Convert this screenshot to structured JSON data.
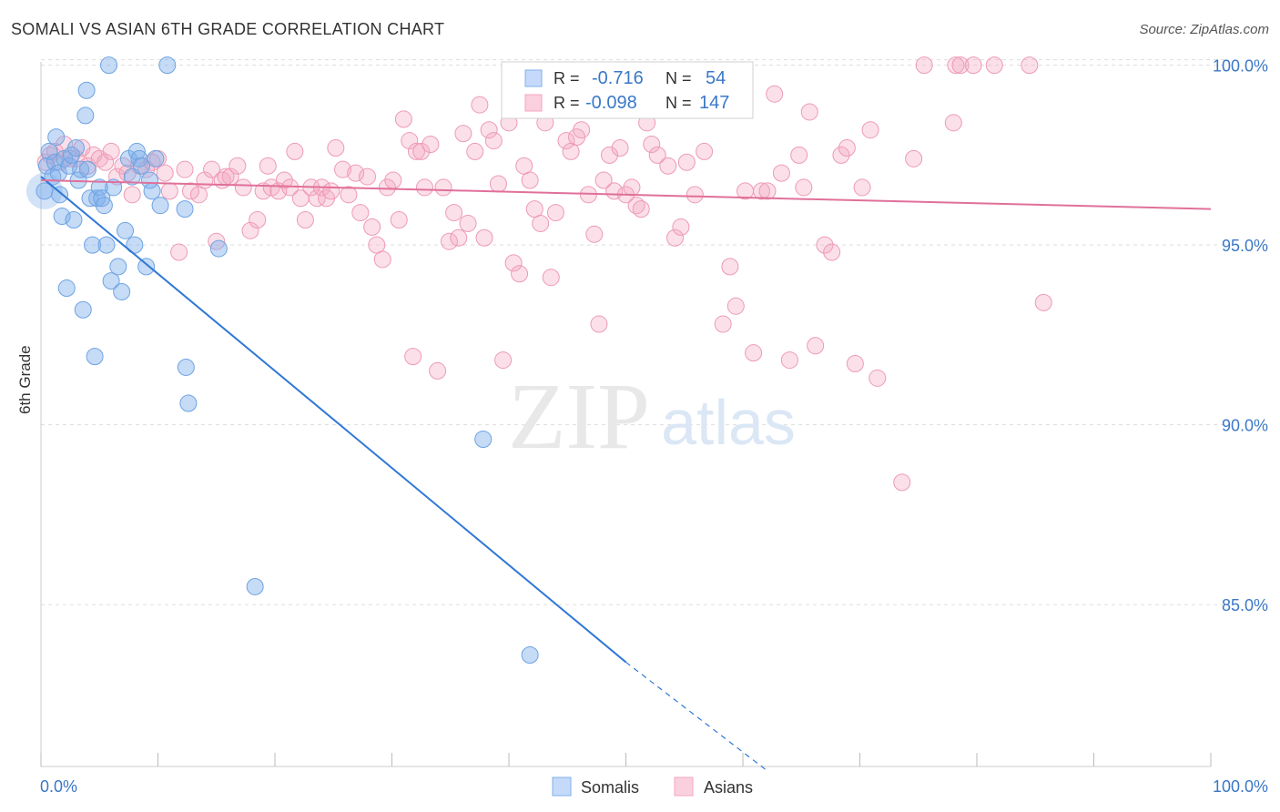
{
  "header": {
    "title": "SOMALI VS ASIAN 6TH GRADE CORRELATION CHART",
    "source": "Source: ZipAtlas.com"
  },
  "watermark": {
    "zip": "ZIP",
    "atlas": "atlas"
  },
  "colors": {
    "somali": "#7fb0ea",
    "somali_line": "#2f78d6",
    "asian": "#f4a6bf",
    "asian_line": "#e0709a",
    "axis_label": "#3a78c8",
    "grid": "#dddddd"
  },
  "legend": {
    "rows": [
      {
        "r_label": "R =",
        "r_value": "-0.716",
        "n_label": "N =",
        "n_value": "54"
      },
      {
        "r_label": "R =",
        "r_value": "-0.098",
        "n_label": "N =",
        "n_value": "147"
      }
    ],
    "bottom": [
      "Somalis",
      "Asians"
    ]
  },
  "chart_data": {
    "type": "scatter",
    "title": "SOMALI VS ASIAN 6TH GRADE CORRELATION CHART",
    "xlabel": "",
    "ylabel": "6th Grade",
    "xlim": [
      0,
      100
    ],
    "ylim": [
      80.5,
      100.8
    ],
    "x_tick_labels": [
      "0.0%",
      "100.0%"
    ],
    "y_ticks": [
      85,
      90,
      95,
      100
    ],
    "y_tick_labels": [
      "85.0%",
      "90.0%",
      "95.0%",
      "100.0%"
    ],
    "grid": true,
    "legend_position": "top-center",
    "series": [
      {
        "name": "Somalis",
        "r": -0.716,
        "n": 54,
        "trend": {
          "x0": 0,
          "y0": 96.9,
          "x1": 50,
          "y1": 83.4,
          "dashed_to": [
            62,
            80.4
          ]
        },
        "points": [
          [
            0.3,
            96.5
          ],
          [
            0.5,
            97.2
          ],
          [
            0.7,
            97.6
          ],
          [
            1.0,
            96.9
          ],
          [
            1.2,
            97.3
          ],
          [
            1.3,
            98.0
          ],
          [
            1.5,
            97.0
          ],
          [
            1.6,
            96.4
          ],
          [
            1.8,
            95.8
          ],
          [
            2.0,
            97.4
          ],
          [
            2.2,
            93.8
          ],
          [
            2.4,
            97.2
          ],
          [
            2.6,
            97.5
          ],
          [
            2.8,
            95.7
          ],
          [
            3.0,
            97.7
          ],
          [
            3.2,
            96.8
          ],
          [
            3.4,
            97.1
          ],
          [
            3.6,
            93.2
          ],
          [
            3.8,
            98.6
          ],
          [
            3.9,
            99.3
          ],
          [
            4.0,
            97.1
          ],
          [
            4.2,
            96.3
          ],
          [
            4.4,
            95.0
          ],
          [
            4.6,
            91.9
          ],
          [
            4.8,
            96.3
          ],
          [
            5.0,
            96.6
          ],
          [
            5.2,
            96.3
          ],
          [
            5.4,
            96.1
          ],
          [
            5.6,
            95.0
          ],
          [
            5.8,
            100.0
          ],
          [
            6.0,
            94.0
          ],
          [
            6.2,
            96.6
          ],
          [
            6.6,
            94.4
          ],
          [
            6.9,
            93.7
          ],
          [
            7.2,
            95.4
          ],
          [
            7.5,
            97.4
          ],
          [
            7.8,
            96.9
          ],
          [
            8.0,
            95.0
          ],
          [
            8.2,
            97.6
          ],
          [
            8.4,
            97.4
          ],
          [
            8.6,
            97.2
          ],
          [
            9.0,
            94.4
          ],
          [
            9.3,
            96.8
          ],
          [
            9.5,
            96.5
          ],
          [
            9.8,
            97.4
          ],
          [
            10.2,
            96.1
          ],
          [
            10.8,
            100.0
          ],
          [
            12.3,
            96.0
          ],
          [
            12.4,
            91.6
          ],
          [
            12.6,
            90.6
          ],
          [
            15.2,
            94.9
          ],
          [
            18.3,
            85.5
          ],
          [
            37.8,
            89.6
          ],
          [
            41.8,
            83.6
          ]
        ]
      },
      {
        "name": "Asians",
        "r": -0.098,
        "n": 147,
        "trend": {
          "x0": 0,
          "y0": 96.8,
          "x1": 100,
          "y1": 96.0
        },
        "points": [
          [
            0.4,
            97.3
          ],
          [
            0.8,
            97.5
          ],
          [
            1.2,
            97.6
          ],
          [
            1.6,
            97.3
          ],
          [
            2.0,
            97.8
          ],
          [
            2.5,
            97.4
          ],
          [
            3.0,
            97.4
          ],
          [
            3.5,
            97.7
          ],
          [
            4.0,
            97.2
          ],
          [
            4.5,
            97.5
          ],
          [
            5.0,
            97.4
          ],
          [
            5.5,
            97.3
          ],
          [
            6.0,
            97.6
          ],
          [
            6.5,
            96.9
          ],
          [
            7.0,
            97.2
          ],
          [
            7.4,
            97.0
          ],
          [
            7.8,
            96.4
          ],
          [
            8.4,
            97.2
          ],
          [
            9.0,
            97.1
          ],
          [
            9.5,
            97.3
          ],
          [
            10.0,
            97.4
          ],
          [
            10.6,
            97.0
          ],
          [
            11.0,
            96.5
          ],
          [
            11.8,
            94.8
          ],
          [
            12.3,
            97.1
          ],
          [
            12.8,
            96.5
          ],
          [
            13.5,
            96.4
          ],
          [
            14.0,
            96.8
          ],
          [
            14.6,
            97.1
          ],
          [
            15.0,
            95.1
          ],
          [
            15.5,
            96.8
          ],
          [
            15.8,
            96.9
          ],
          [
            16.2,
            96.9
          ],
          [
            16.8,
            97.2
          ],
          [
            17.3,
            96.6
          ],
          [
            17.9,
            95.4
          ],
          [
            18.5,
            95.7
          ],
          [
            19.0,
            96.5
          ],
          [
            19.4,
            97.2
          ],
          [
            19.7,
            96.6
          ],
          [
            20.3,
            96.5
          ],
          [
            20.8,
            96.8
          ],
          [
            21.3,
            96.6
          ],
          [
            21.7,
            97.6
          ],
          [
            22.2,
            96.3
          ],
          [
            22.6,
            95.7
          ],
          [
            23.1,
            96.6
          ],
          [
            23.6,
            96.3
          ],
          [
            24.0,
            96.6
          ],
          [
            24.4,
            96.3
          ],
          [
            24.8,
            96.5
          ],
          [
            25.2,
            97.7
          ],
          [
            25.8,
            97.1
          ],
          [
            26.3,
            96.4
          ],
          [
            26.9,
            97.0
          ],
          [
            27.3,
            95.9
          ],
          [
            27.9,
            96.9
          ],
          [
            28.3,
            95.5
          ],
          [
            28.7,
            95.0
          ],
          [
            29.2,
            94.6
          ],
          [
            29.6,
            96.6
          ],
          [
            30.1,
            96.8
          ],
          [
            30.6,
            95.7
          ],
          [
            31.0,
            98.5
          ],
          [
            31.5,
            97.9
          ],
          [
            31.8,
            91.9
          ],
          [
            32.1,
            97.6
          ],
          [
            32.5,
            97.6
          ],
          [
            32.8,
            96.6
          ],
          [
            33.3,
            97.8
          ],
          [
            33.9,
            91.5
          ],
          [
            34.4,
            96.6
          ],
          [
            34.9,
            95.1
          ],
          [
            35.3,
            95.9
          ],
          [
            35.7,
            95.2
          ],
          [
            36.1,
            98.1
          ],
          [
            36.5,
            95.6
          ],
          [
            37.1,
            97.6
          ],
          [
            37.5,
            98.9
          ],
          [
            37.9,
            95.2
          ],
          [
            38.3,
            98.2
          ],
          [
            38.7,
            97.9
          ],
          [
            39.1,
            96.7
          ],
          [
            39.5,
            91.8
          ],
          [
            40.0,
            98.4
          ],
          [
            40.4,
            94.5
          ],
          [
            40.9,
            94.2
          ],
          [
            41.3,
            97.2
          ],
          [
            41.8,
            96.8
          ],
          [
            42.2,
            96.0
          ],
          [
            42.7,
            95.6
          ],
          [
            43.1,
            98.4
          ],
          [
            43.6,
            94.1
          ],
          [
            44.0,
            95.9
          ],
          [
            44.4,
            98.9
          ],
          [
            44.9,
            97.9
          ],
          [
            45.3,
            97.6
          ],
          [
            45.8,
            98.0
          ],
          [
            46.2,
            98.2
          ],
          [
            46.8,
            96.4
          ],
          [
            47.3,
            95.3
          ],
          [
            47.7,
            92.8
          ],
          [
            48.1,
            96.8
          ],
          [
            48.6,
            97.5
          ],
          [
            49.0,
            96.5
          ],
          [
            49.5,
            97.7
          ],
          [
            50.0,
            96.4
          ],
          [
            50.5,
            96.6
          ],
          [
            50.9,
            96.1
          ],
          [
            51.3,
            96.0
          ],
          [
            51.8,
            98.4
          ],
          [
            52.2,
            97.8
          ],
          [
            52.7,
            97.5
          ],
          [
            53.1,
            98.9
          ],
          [
            53.6,
            97.2
          ],
          [
            54.2,
            95.2
          ],
          [
            54.7,
            95.5
          ],
          [
            55.2,
            97.3
          ],
          [
            55.9,
            96.4
          ],
          [
            56.7,
            97.6
          ],
          [
            57.4,
            98.8
          ],
          [
            58.3,
            92.8
          ],
          [
            58.9,
            94.4
          ],
          [
            59.4,
            93.3
          ],
          [
            60.2,
            96.5
          ],
          [
            60.9,
            92.0
          ],
          [
            61.6,
            96.5
          ],
          [
            62.1,
            96.5
          ],
          [
            62.7,
            99.2
          ],
          [
            63.3,
            97.0
          ],
          [
            64.0,
            91.8
          ],
          [
            64.8,
            97.5
          ],
          [
            65.2,
            96.6
          ],
          [
            65.7,
            98.7
          ],
          [
            66.2,
            92.2
          ],
          [
            67.0,
            95.0
          ],
          [
            67.6,
            94.8
          ],
          [
            68.4,
            97.5
          ],
          [
            68.9,
            97.7
          ],
          [
            69.6,
            91.7
          ],
          [
            70.2,
            96.6
          ],
          [
            70.9,
            98.2
          ],
          [
            71.5,
            91.3
          ],
          [
            73.6,
            88.4
          ],
          [
            74.6,
            97.4
          ],
          [
            75.5,
            100.0
          ],
          [
            78.2,
            100.0
          ],
          [
            78.6,
            100.0
          ],
          [
            79.7,
            100.0
          ],
          [
            81.5,
            100.0
          ],
          [
            84.5,
            100.0
          ],
          [
            78.0,
            98.4
          ],
          [
            85.7,
            93.4
          ]
        ]
      }
    ]
  }
}
